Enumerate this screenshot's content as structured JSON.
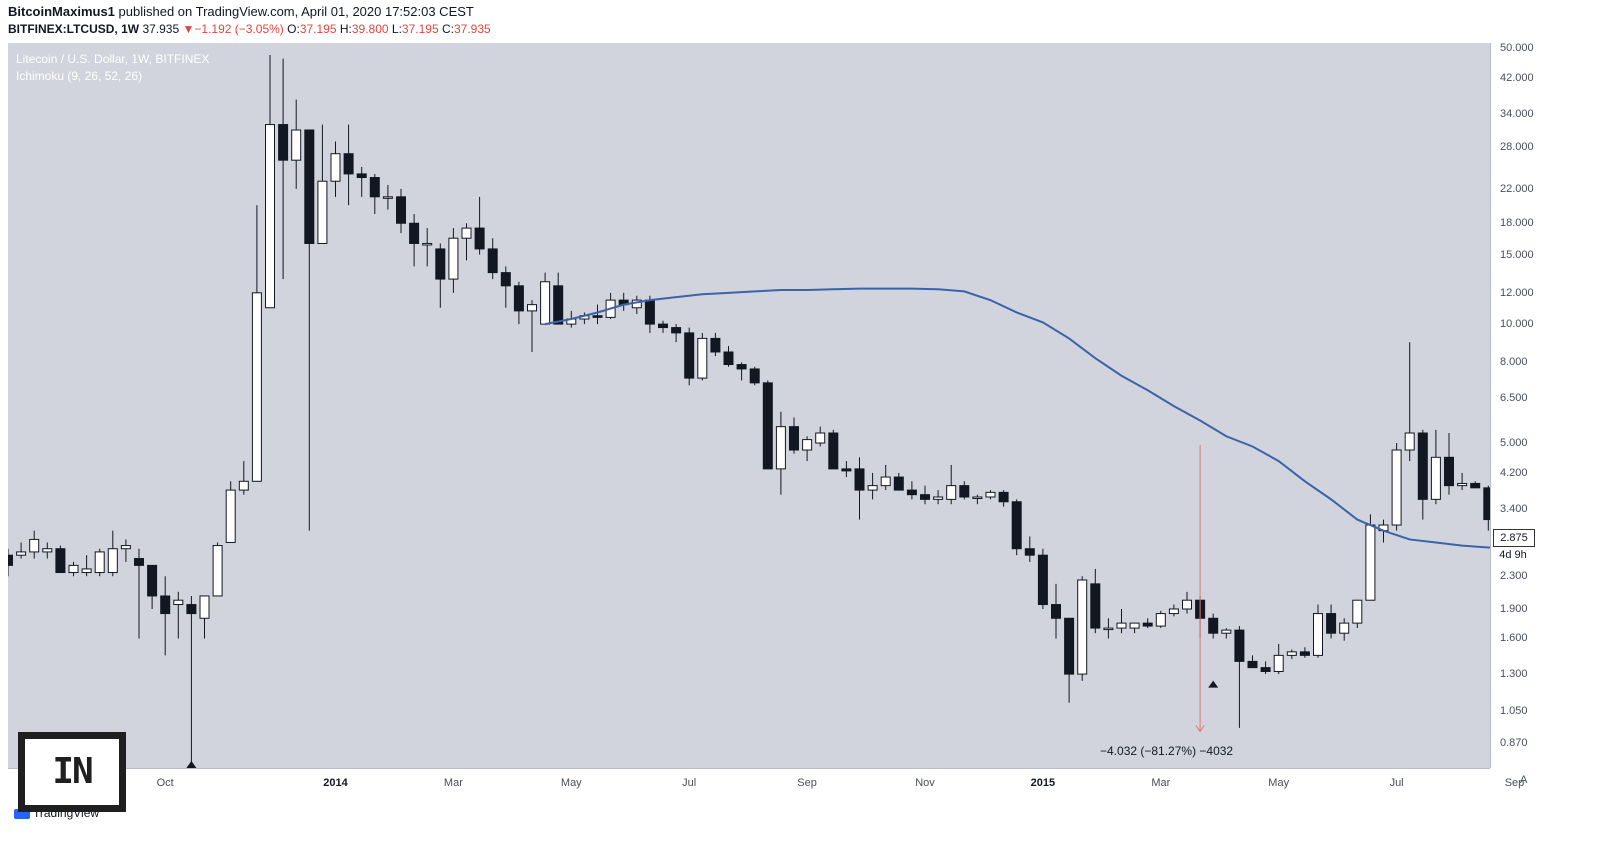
{
  "header": {
    "author": "BitcoinMaximus1",
    "published_text": " published on TradingView.com, April 01, 2020 17:52:03 CEST",
    "symbol": "BITFINEX:LTCUSD, 1W",
    "last": "37.935",
    "change_arrow": "▼",
    "change": "−1.192 (−3.05%)",
    "o_label": "O:",
    "o_value": "37.195",
    "h_label": "H:",
    "h_value": "39.800",
    "l_label": "L:",
    "l_value": "37.195",
    "c_label": "C:",
    "c_value": "37.935"
  },
  "legend": {
    "series": "Litecoin / U.S. Dollar, 1W, BITFINEX",
    "indicator": "Ichimoku (9, 26, 52, 26)"
  },
  "measure_label": "−4.032 (−81.27%) −4032",
  "last_price_tag": "2.875",
  "countdown": "4d 9h",
  "footer": {
    "brand": "TradingView"
  },
  "auto_button": "A",
  "watermark_text": "IN",
  "colors": {
    "plot_bg": "#d1d4dd",
    "up_fill": "#ffffff",
    "down_fill": "#131722",
    "ichimoku_line": "#3a63a8",
    "measure_line": "#e07a7a"
  },
  "chart_data": {
    "type": "candlestick",
    "scale": "log",
    "y_ticks": [
      "50.000",
      "42.000",
      "34.000",
      "28.000",
      "22.000",
      "18.000",
      "15.000",
      "12.000",
      "10.000",
      "8.000",
      "6.500",
      "5.000",
      "4.200",
      "3.400",
      "2.875",
      "2.300",
      "1.900",
      "1.600",
      "1.300",
      "1.050",
      "0.870"
    ],
    "y_tick_values": [
      50,
      42,
      34,
      28,
      22,
      18,
      15,
      12,
      10,
      8,
      6.5,
      5,
      4.2,
      3.4,
      2.875,
      2.3,
      1.9,
      1.6,
      1.3,
      1.05,
      0.87
    ],
    "x_ticks": [
      "Oct",
      "2014",
      "Mar",
      "May",
      "Jul",
      "Sep",
      "Nov",
      "2015",
      "Mar",
      "May",
      "Jul",
      "Sep"
    ],
    "x_ticks_bold": [
      false,
      true,
      false,
      false,
      false,
      false,
      false,
      true,
      false,
      false,
      false,
      false
    ],
    "x_tick_week": [
      12,
      25,
      34,
      43,
      52,
      61,
      70,
      79,
      88,
      97,
      106,
      115
    ],
    "candles": [
      [
        2.6,
        2.7,
        2.3,
        2.45
      ],
      [
        2.6,
        2.8,
        2.55,
        2.65
      ],
      [
        2.65,
        3.0,
        2.55,
        2.85
      ],
      [
        2.65,
        2.8,
        2.55,
        2.7
      ],
      [
        2.7,
        2.75,
        2.35,
        2.35
      ],
      [
        2.35,
        2.5,
        2.3,
        2.45
      ],
      [
        2.35,
        2.6,
        2.3,
        2.4
      ],
      [
        2.35,
        2.7,
        2.3,
        2.65
      ],
      [
        2.35,
        3.0,
        2.3,
        2.7
      ],
      [
        2.7,
        2.85,
        2.5,
        2.75
      ],
      [
        2.55,
        2.7,
        1.6,
        2.45
      ],
      [
        2.45,
        2.45,
        1.9,
        2.05
      ],
      [
        2.05,
        2.3,
        1.45,
        1.85
      ],
      [
        1.95,
        2.1,
        1.6,
        2.0
      ],
      [
        1.95,
        2.05,
        0.75,
        1.85
      ],
      [
        1.8,
        2.05,
        1.6,
        2.05
      ],
      [
        2.05,
        2.8,
        2.05,
        2.75
      ],
      [
        2.8,
        4.0,
        2.8,
        3.8
      ],
      [
        3.8,
        4.5,
        3.7,
        4.0
      ],
      [
        4.0,
        20.0,
        4.0,
        12.0
      ],
      [
        11.0,
        48.0,
        11.0,
        32.0
      ],
      [
        32.0,
        47.0,
        13.0,
        26.0
      ],
      [
        26.0,
        37.0,
        22.0,
        31.0
      ],
      [
        31.0,
        31.0,
        3.0,
        16.0
      ],
      [
        16.0,
        32.0,
        16.0,
        23.0
      ],
      [
        23.0,
        29.0,
        21.0,
        27.0
      ],
      [
        27.0,
        32.0,
        20.0,
        24.0
      ],
      [
        24.0,
        25.0,
        21.0,
        23.5
      ],
      [
        23.5,
        24.0,
        19.0,
        21.0
      ],
      [
        21.0,
        22.5,
        19.5,
        21.0
      ],
      [
        21.0,
        22.0,
        17.0,
        18.0
      ],
      [
        18.0,
        19.0,
        14.0,
        16.0
      ],
      [
        16.0,
        17.5,
        14.0,
        16.0
      ],
      [
        15.5,
        16.0,
        11.0,
        13.0
      ],
      [
        13.0,
        17.5,
        12.0,
        16.5
      ],
      [
        16.5,
        18.0,
        14.5,
        17.5
      ],
      [
        17.5,
        21.0,
        15.0,
        15.5
      ],
      [
        15.5,
        16.5,
        13.0,
        13.5
      ],
      [
        13.5,
        14.0,
        11.0,
        12.5
      ],
      [
        12.5,
        12.8,
        10.0,
        10.8
      ],
      [
        10.8,
        11.5,
        8.5,
        11.2
      ],
      [
        10.0,
        13.5,
        10.0,
        12.8
      ],
      [
        12.5,
        13.5,
        10.0,
        10.0
      ],
      [
        10.0,
        10.8,
        9.8,
        10.3
      ],
      [
        10.3,
        10.7,
        10.0,
        10.5
      ],
      [
        10.5,
        11.2,
        10.0,
        10.4
      ],
      [
        10.4,
        12.0,
        10.3,
        11.5
      ],
      [
        11.5,
        12.0,
        10.8,
        11.2
      ],
      [
        11.0,
        11.8,
        10.6,
        11.5
      ],
      [
        11.5,
        11.8,
        9.5,
        10.0
      ],
      [
        10.0,
        10.2,
        9.5,
        9.8
      ],
      [
        9.8,
        10.0,
        9.0,
        9.5
      ],
      [
        9.5,
        9.8,
        7.0,
        7.3
      ],
      [
        7.3,
        9.5,
        7.2,
        9.2
      ],
      [
        9.2,
        9.5,
        8.3,
        8.5
      ],
      [
        8.5,
        8.8,
        7.8,
        7.9
      ],
      [
        7.9,
        8.0,
        7.2,
        7.7
      ],
      [
        7.7,
        7.8,
        7.0,
        7.1
      ],
      [
        7.1,
        7.2,
        4.3,
        4.3
      ],
      [
        4.3,
        6.0,
        3.7,
        5.5
      ],
      [
        5.5,
        5.8,
        4.7,
        4.8
      ],
      [
        4.8,
        5.2,
        4.5,
        5.1
      ],
      [
        5.0,
        5.5,
        4.9,
        5.3
      ],
      [
        5.3,
        5.4,
        4.3,
        4.3
      ],
      [
        4.3,
        4.5,
        4.1,
        4.25
      ],
      [
        4.3,
        4.6,
        3.2,
        3.8
      ],
      [
        3.8,
        4.2,
        3.6,
        3.9
      ],
      [
        3.9,
        4.4,
        3.8,
        4.1
      ],
      [
        4.1,
        4.2,
        3.8,
        3.8
      ],
      [
        3.8,
        4.0,
        3.6,
        3.7
      ],
      [
        3.7,
        3.9,
        3.5,
        3.6
      ],
      [
        3.6,
        3.8,
        3.5,
        3.65
      ],
      [
        3.6,
        4.4,
        3.5,
        3.9
      ],
      [
        3.9,
        4.0,
        3.6,
        3.65
      ],
      [
        3.65,
        3.7,
        3.5,
        3.65
      ],
      [
        3.65,
        3.8,
        3.6,
        3.75
      ],
      [
        3.75,
        3.8,
        3.45,
        3.55
      ],
      [
        3.55,
        3.6,
        2.6,
        2.7
      ],
      [
        2.7,
        2.9,
        2.5,
        2.6
      ],
      [
        2.6,
        2.7,
        1.9,
        1.95
      ],
      [
        1.95,
        2.2,
        1.6,
        1.8
      ],
      [
        1.8,
        1.8,
        1.1,
        1.3
      ],
      [
        1.3,
        2.3,
        1.25,
        2.25
      ],
      [
        2.2,
        2.4,
        1.65,
        1.7
      ],
      [
        1.7,
        1.8,
        1.6,
        1.7
      ],
      [
        1.7,
        1.9,
        1.65,
        1.75
      ],
      [
        1.7,
        1.75,
        1.65,
        1.75
      ],
      [
        1.75,
        1.8,
        1.7,
        1.72
      ],
      [
        1.72,
        1.88,
        1.7,
        1.85
      ],
      [
        1.85,
        1.95,
        1.82,
        1.9
      ],
      [
        1.9,
        2.1,
        1.85,
        2.0
      ],
      [
        2.0,
        2.05,
        1.6,
        1.8
      ],
      [
        1.8,
        1.85,
        1.6,
        1.65
      ],
      [
        1.65,
        1.7,
        1.6,
        1.68
      ],
      [
        1.68,
        1.72,
        0.95,
        1.4
      ],
      [
        1.4,
        1.45,
        1.35,
        1.35
      ],
      [
        1.35,
        1.4,
        1.3,
        1.32
      ],
      [
        1.32,
        1.55,
        1.3,
        1.45
      ],
      [
        1.45,
        1.5,
        1.42,
        1.48
      ],
      [
        1.48,
        1.52,
        1.43,
        1.45
      ],
      [
        1.45,
        1.95,
        1.43,
        1.85
      ],
      [
        1.85,
        1.95,
        1.6,
        1.65
      ],
      [
        1.65,
        1.8,
        1.58,
        1.75
      ],
      [
        1.75,
        2.0,
        1.7,
        2.0
      ],
      [
        2.0,
        3.3,
        2.0,
        3.1
      ],
      [
        3.0,
        3.2,
        2.8,
        3.1
      ],
      [
        3.1,
        5.0,
        3.0,
        4.8
      ],
      [
        4.8,
        9.0,
        4.5,
        5.3
      ],
      [
        5.3,
        5.4,
        3.2,
        3.6
      ],
      [
        3.6,
        5.4,
        3.5,
        4.6
      ],
      [
        4.6,
        5.3,
        3.7,
        3.9
      ],
      [
        3.9,
        4.2,
        3.8,
        3.95
      ],
      [
        3.95,
        4.0,
        3.85,
        3.85
      ],
      [
        3.85,
        3.9,
        3.0,
        3.2
      ],
      [
        3.2,
        3.3,
        2.4,
        2.6
      ],
      [
        2.6,
        3.1,
        2.5,
        3.1
      ],
      [
        3.1,
        3.1,
        2.75,
        2.9
      ],
      [
        2.7,
        2.85,
        2.65,
        2.8
      ],
      [
        2.8,
        2.9,
        2.75,
        2.88
      ]
    ],
    "ichimoku_span": {
      "start_week": 41,
      "values": [
        10.0,
        10.3,
        10.7,
        11.2,
        11.5,
        11.7,
        11.9,
        12.0,
        12.1,
        12.2,
        12.2,
        12.25,
        12.3,
        12.3,
        12.3,
        12.25,
        12.1,
        11.5,
        10.7,
        10.1,
        9.2,
        8.2,
        7.4,
        6.8,
        6.2,
        5.7,
        5.2,
        4.9,
        4.5,
        4.0,
        3.6,
        3.2,
        3.0,
        2.85,
        2.8,
        2.75,
        2.72,
        2.7
      ]
    }
  }
}
